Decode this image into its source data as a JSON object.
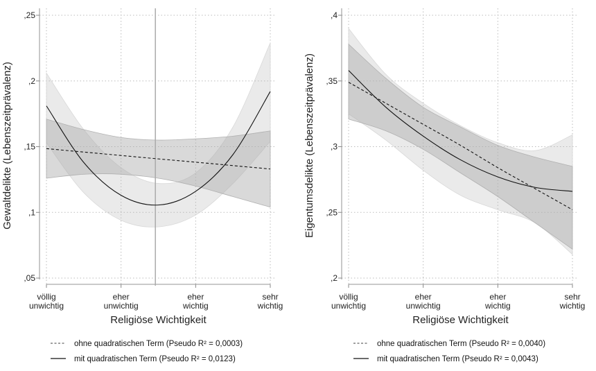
{
  "chart_data": [
    {
      "type": "line",
      "xlabel": "Religiöse Wichtigkeit",
      "ylabel": "Gewaltdelikte (Lebenszeitprävalenz)",
      "categories": [
        [
          "völlig",
          "unwichtig"
        ],
        [
          "eher",
          "unwichtig"
        ],
        [
          "eher",
          "wichtig"
        ],
        [
          "sehr",
          "wichtig"
        ]
      ],
      "x": [
        1,
        1.5,
        2,
        2.5,
        3,
        3.5,
        4
      ],
      "ylim": [
        0.045,
        0.255
      ],
      "yticks": [
        0.05,
        0.1,
        0.15,
        0.2,
        0.25
      ],
      "ytick_labels": [
        ",05",
        ",1",
        ",15",
        ",2",
        ",25"
      ],
      "grid": true,
      "reference_line_x": 2.46,
      "series": [
        {
          "name": "ohne quadratischen Term (Pseudo R² = 0,0003)",
          "style": "dashed",
          "values": [
            0.1485,
            0.1459,
            0.1433,
            0.1407,
            0.1382,
            0.1356,
            0.133
          ],
          "ci_upper": [
            0.171,
            0.163,
            0.157,
            0.155,
            0.156,
            0.158,
            0.162
          ],
          "ci_lower": [
            0.126,
            0.129,
            0.129,
            0.126,
            0.12,
            0.112,
            0.104
          ]
        },
        {
          "name": "mit quadratischen Term  (Pseudo R² = 0,0123)",
          "style": "solid",
          "values": [
            0.181,
            0.138,
            0.113,
            0.1056,
            0.116,
            0.144,
            0.192
          ],
          "ci_upper": [
            0.206,
            0.163,
            0.134,
            0.122,
            0.13,
            0.165,
            0.229
          ],
          "ci_lower": [
            0.153,
            0.115,
            0.094,
            0.089,
            0.098,
            0.122,
            0.154
          ]
        }
      ],
      "legend": "bottom"
    },
    {
      "type": "line",
      "xlabel": "Religiöse Wichtigkeit",
      "ylabel": "Eigentumsdelikte (Lebenszeitprävalenz)",
      "categories": [
        [
          "völlig",
          "unwichtig"
        ],
        [
          "eher",
          "unwichtig"
        ],
        [
          "eher",
          "wichtig"
        ],
        [
          "sehr",
          "wichtig"
        ]
      ],
      "x": [
        1,
        1.5,
        2,
        2.5,
        3,
        3.5,
        4
      ],
      "ylim": [
        0.195,
        0.405
      ],
      "yticks": [
        0.2,
        0.25,
        0.3,
        0.35,
        0.4
      ],
      "ytick_labels": [
        ",2",
        ",25",
        ",3",
        ",35",
        ",4"
      ],
      "grid": true,
      "series": [
        {
          "name": "ohne quadratischen Term (Pseudo R² = 0,0040)",
          "style": "dashed",
          "values": [
            0.349,
            0.333,
            0.317,
            0.301,
            0.284,
            0.268,
            0.252
          ],
          "ci_upper": [
            0.378,
            0.352,
            0.33,
            0.315,
            0.301,
            0.292,
            0.285
          ],
          "ci_lower": [
            0.321,
            0.312,
            0.298,
            0.28,
            0.262,
            0.242,
            0.222
          ]
        },
        {
          "name": "mit quadratischen Term  (Pseudo R² = 0,0043)",
          "style": "solid",
          "values": [
            0.358,
            0.33,
            0.308,
            0.29,
            0.277,
            0.269,
            0.266
          ],
          "ci_upper": [
            0.39,
            0.355,
            0.333,
            0.316,
            0.303,
            0.297,
            0.309
          ],
          "ci_lower": [
            0.325,
            0.305,
            0.282,
            0.263,
            0.252,
            0.242,
            0.218
          ]
        }
      ],
      "legend": "bottom"
    }
  ]
}
